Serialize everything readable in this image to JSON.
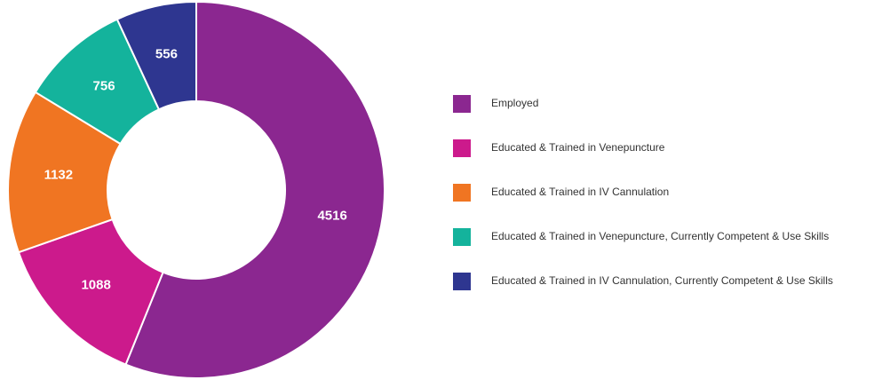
{
  "chart_data": {
    "type": "pie",
    "categories": [
      "Employed",
      "Educated & Trained in Venepuncture",
      "Educated & Trained in IV Cannulation",
      "Educated & Trained in Venepuncture, Currently Competent & Use Skills",
      "Educated & Trained in IV Cannulation, Currently Competent & Use Skills"
    ],
    "values": [
      4516,
      1088,
      1132,
      756,
      556
    ],
    "colors": [
      "#8b2790",
      "#cc1a8c",
      "#f07522",
      "#14b39c",
      "#2e3690"
    ],
    "donut": true,
    "legend": "right"
  }
}
